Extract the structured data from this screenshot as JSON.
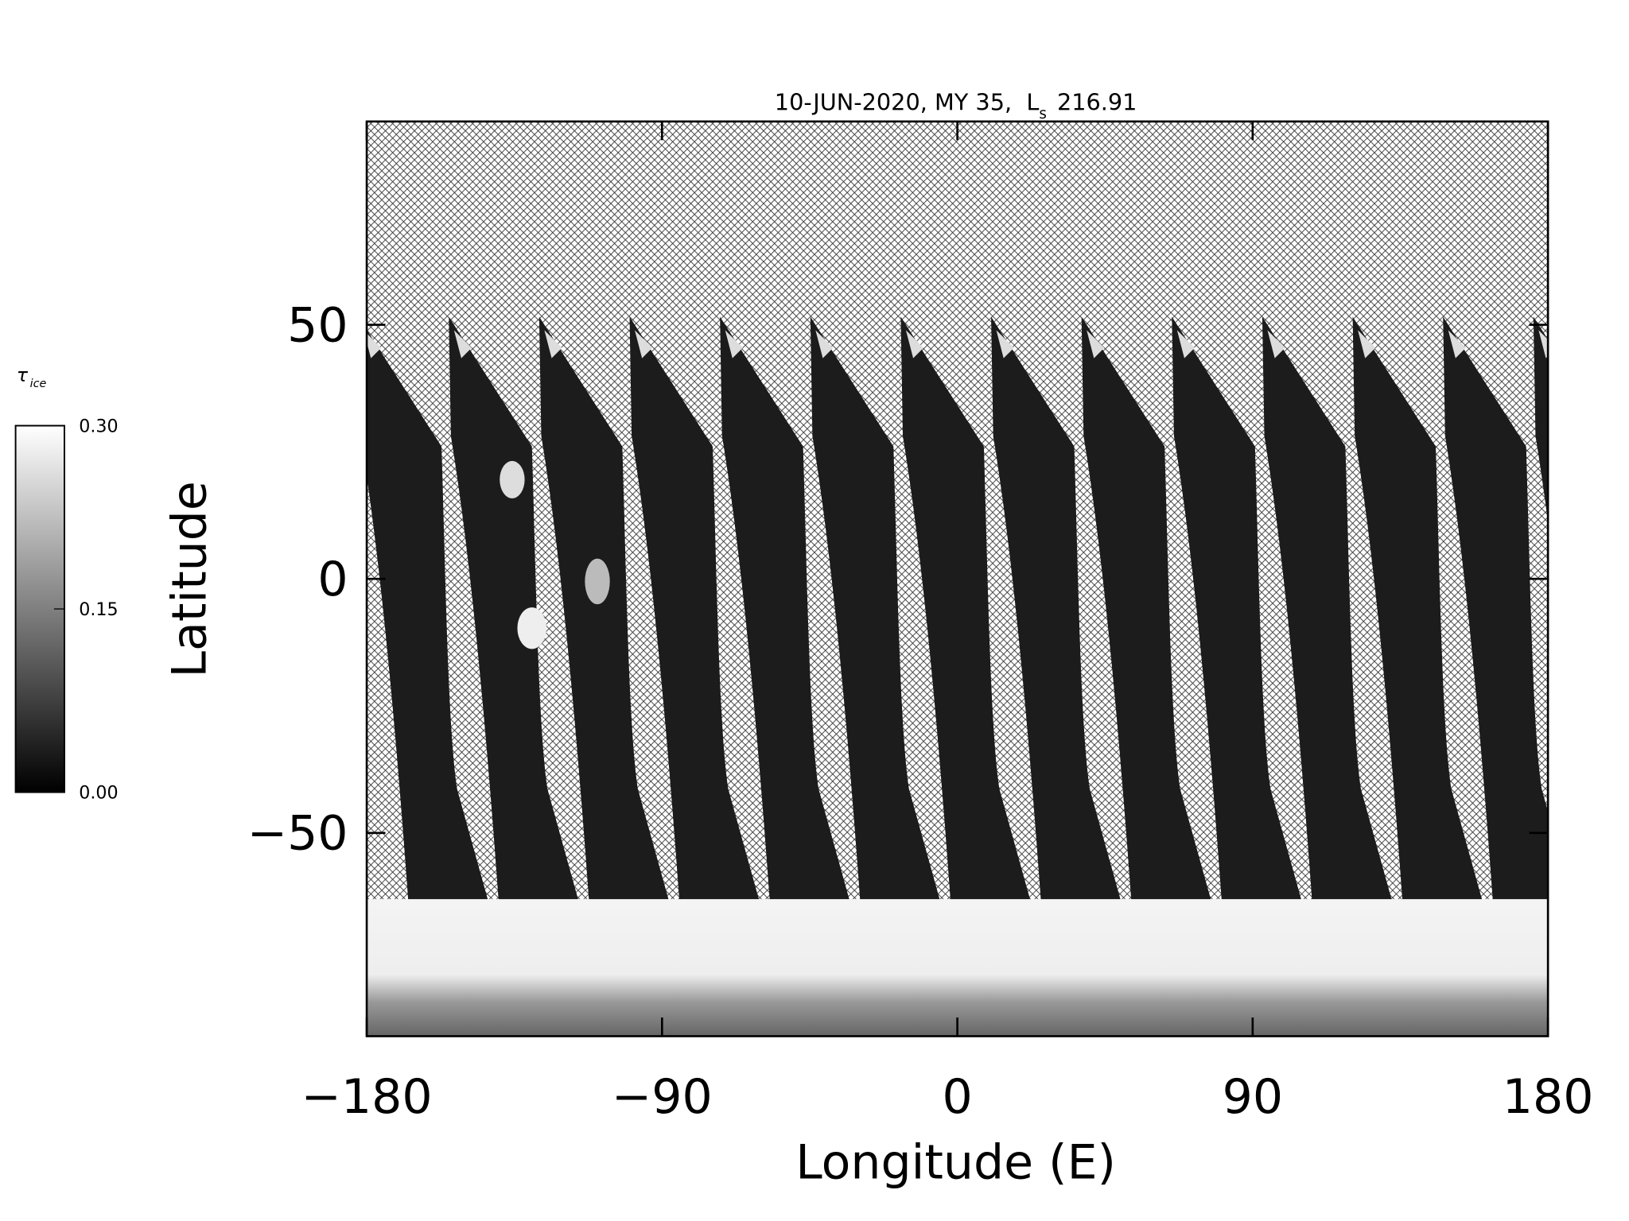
{
  "title": {
    "text": "10-JUN-2020, MY 35,  L",
    "subscript": "s",
    "value": "216.91"
  },
  "map": {
    "xlabel": "Longitude (E)",
    "ylabel": "Latitude",
    "xlim": [
      -180,
      180
    ],
    "ylim": [
      -90,
      90
    ],
    "xticks": [
      {
        "value": -180,
        "label": "−180"
      },
      {
        "value": -90,
        "label": "−90"
      },
      0,
      90,
      180
    ],
    "yticks": [
      {
        "value": -50,
        "label": "−50"
      },
      0,
      50
    ]
  },
  "colorbar": {
    "symbol": "τ",
    "subscript": "ice",
    "lim": [
      0,
      0.3
    ],
    "ticks": [
      {
        "value": 0,
        "label": "0.00"
      },
      {
        "value": 0.15,
        "label": "0.15"
      },
      {
        "value": 0.3,
        "label": "0.30"
      }
    ]
  }
}
